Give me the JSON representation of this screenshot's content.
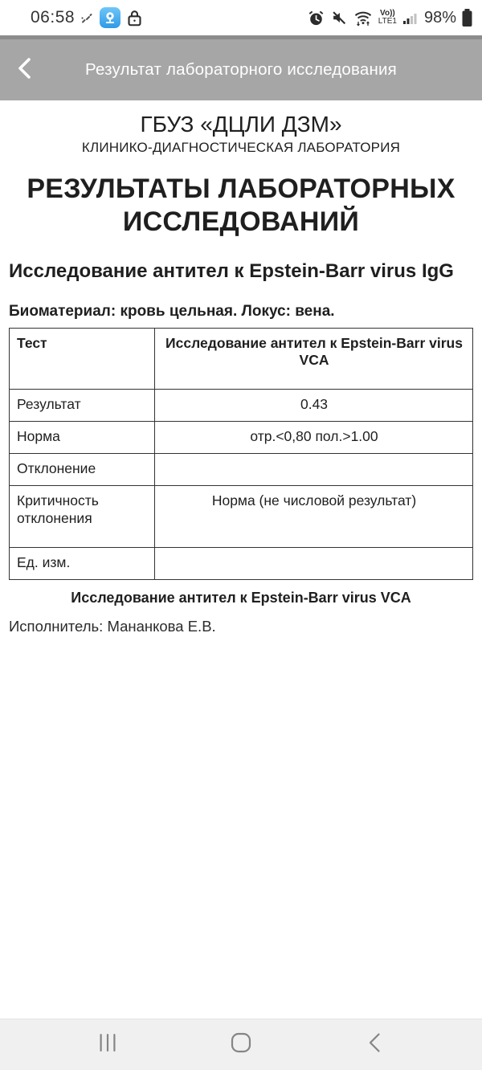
{
  "status_bar": {
    "time": "06:58",
    "battery_percent": "98%",
    "volte_label": "Vo))",
    "network_label": "LTE1",
    "icons_left": [
      "precip-dashes-icon",
      "webcam-app-icon",
      "lock-icon"
    ],
    "icons_right": [
      "alarm-icon",
      "sound-mute-icon",
      "wifi-arrows-icon",
      "signal-strength-icon",
      "battery-icon"
    ]
  },
  "app_bar": {
    "title": "Результат лабораторного исследования",
    "back_icon": "back-chevron-icon"
  },
  "report": {
    "org_name": "ГБУЗ «ДЦЛИ ДЗМ»",
    "org_subtitle": "КЛИНИКО-ДИАГНОСТИЧЕСКАЯ ЛАБОРАТОРИЯ",
    "main_title": "РЕЗУЛЬТАТЫ ЛАБОРАТОРНЫХ ИССЛЕДОВАНИЙ",
    "section_title": "Исследование антител к Epstein-Barr virus IgG",
    "biomaterial_line": "Биоматериал: кровь цельная. Локус: вена.",
    "table": {
      "rows": [
        {
          "label": "Тест",
          "value": "Исследование антител к Epstein-Barr virus VCA",
          "header": true
        },
        {
          "label": "Результат",
          "value": "0.43"
        },
        {
          "label": "Норма",
          "value": "отр.<0,80 пол.>1.00"
        },
        {
          "label": "Отклонение",
          "value": ""
        },
        {
          "label": "Критичность отклонения",
          "value": "Норма (не числовой результат)",
          "tall": true
        },
        {
          "label": "Ед. изм.",
          "value": ""
        }
      ]
    },
    "caption": "Исследование антител к Epstein-Barr virus VCA",
    "executor_line": "Исполнитель: Мананкова Е.В."
  },
  "nav_bar": {
    "icons": [
      "recents-icon",
      "home-icon",
      "back-icon"
    ]
  },
  "colors": {
    "app_bar": "#a6a6a6",
    "app_bar_strip": "#8c8c8c",
    "app_icon_blue": "#2f9ae6",
    "nav_bar_bg": "#f0f0f0",
    "status_icon": "#2c2c2c",
    "text": "#1f1f1f"
  }
}
